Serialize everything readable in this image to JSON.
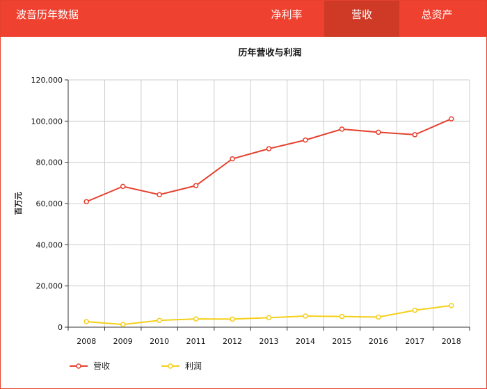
{
  "header": {
    "app_title": "波音历年数据",
    "tabs": [
      {
        "label": "净利率",
        "active": false
      },
      {
        "label": "营收",
        "active": true
      },
      {
        "label": "总资产",
        "active": false
      }
    ],
    "colors": {
      "bar": "#ef4130",
      "active_tab": "#cf3a27"
    }
  },
  "chart_data": {
    "type": "line",
    "title": "历年营收与利润",
    "xlabel": "",
    "ylabel": "百万元",
    "x": [
      "2008",
      "2009",
      "2010",
      "2011",
      "2012",
      "2013",
      "2014",
      "2015",
      "2016",
      "2017",
      "2018"
    ],
    "ylim": [
      0,
      120000
    ],
    "yticks": [
      0,
      20000,
      40000,
      60000,
      80000,
      100000,
      120000
    ],
    "ytick_labels": [
      "0",
      "20,000",
      "40,000",
      "60,000",
      "80,000",
      "100,000",
      "120,000"
    ],
    "grid": true,
    "legend_position": "bottom-left",
    "series": [
      {
        "name": "营收",
        "color": "#e5412e",
        "values": [
          60900,
          68300,
          64300,
          68700,
          81700,
          86600,
          90800,
          96100,
          94600,
          93400,
          101100
        ]
      },
      {
        "name": "利润",
        "color": "#f5cf19",
        "values": [
          2700,
          1300,
          3300,
          4000,
          3900,
          4600,
          5400,
          5200,
          4900,
          8200,
          10500
        ]
      }
    ]
  }
}
